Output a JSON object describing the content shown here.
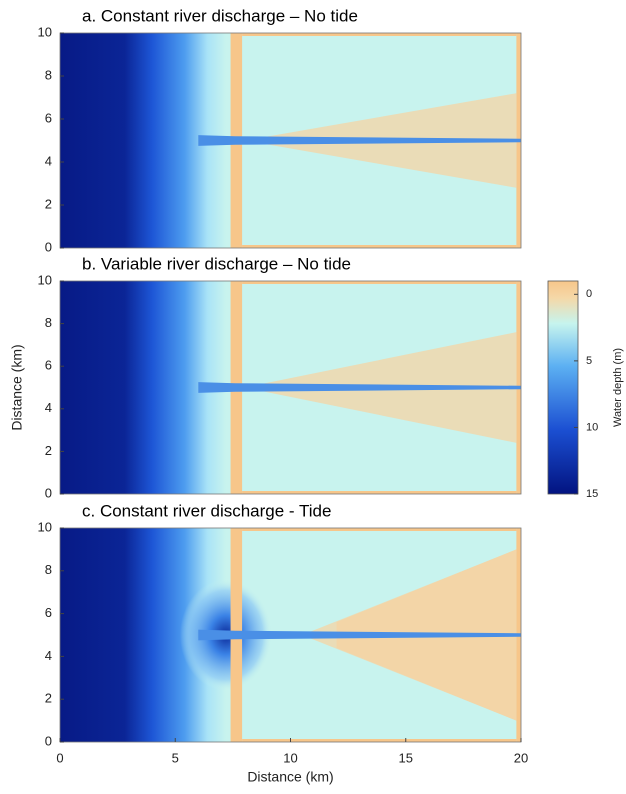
{
  "chart_data": [
    {
      "type": "heatmap",
      "title": "a. Constant river discharge – No tide",
      "xlim": [
        0,
        20
      ],
      "ylim": [
        0,
        10
      ],
      "yticks": [
        0,
        2,
        4,
        6,
        8,
        10
      ]
    },
    {
      "type": "heatmap",
      "title": "b. Variable river discharge – No tide",
      "xlim": [
        0,
        20
      ],
      "ylim": [
        0,
        10
      ],
      "yticks": [
        0,
        2,
        4,
        6,
        8,
        10
      ],
      "ylabel": "Distance (km)",
      "colorbar": {
        "label": "Water depth (m)",
        "lim": [
          -1,
          15
        ],
        "ticks": [
          0,
          5,
          10,
          15
        ]
      }
    },
    {
      "type": "heatmap",
      "title": "c. Constant river discharge - Tide",
      "xlim": [
        0,
        20
      ],
      "ylim": [
        0,
        10
      ],
      "yticks": [
        0,
        2,
        4,
        6,
        8,
        10
      ],
      "xticks": [
        0,
        5,
        10,
        15,
        20
      ],
      "xlabel": "Distance (km)"
    }
  ]
}
